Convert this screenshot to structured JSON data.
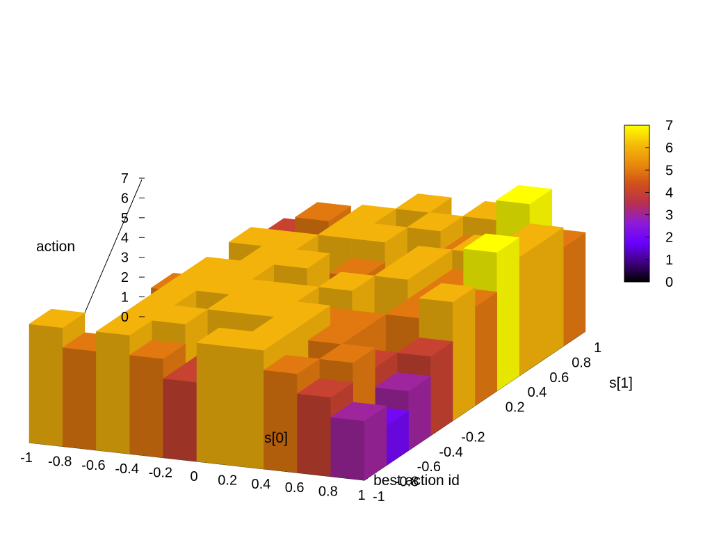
{
  "chart_data": {
    "type": "surface",
    "zlabel": "action",
    "xlabel": "s[0]",
    "ylabel": "s[1]",
    "caption": "best action id",
    "x_ticks": [
      "-1",
      "-0.8",
      "-0.6",
      "-0.4",
      "-0.2",
      "0",
      "0.2",
      "0.4",
      "0.6",
      "0.8",
      "1"
    ],
    "y_ticks": [
      "-1",
      "-0.8",
      "-0.6",
      "-0.4",
      "-0.2",
      "0.2",
      "0.4",
      "0.6",
      "0.8",
      "1"
    ],
    "z_ticks": [
      "0",
      "1",
      "2",
      "3",
      "4",
      "5",
      "6",
      "7"
    ],
    "colorbar_ticks": [
      "0",
      "1",
      "2",
      "3",
      "4",
      "5",
      "6",
      "7"
    ],
    "xlim": [
      -1,
      1
    ],
    "ylim": [
      -1,
      1
    ],
    "zlim": [
      0,
      7
    ],
    "colormap": [
      "#000000",
      "#400080",
      "#6a00ff",
      "#8c1cd8",
      "#b83050",
      "#d2501a",
      "#e88a0c",
      "#f6ba0a",
      "#ffff00"
    ],
    "x_grid": [
      -1,
      -0.8,
      -0.6,
      -0.4,
      -0.2,
      0,
      0.2,
      0.4,
      0.6,
      0.8,
      1
    ],
    "y_grid": [
      -1,
      -0.8,
      -0.6,
      -0.4,
      -0.2,
      0,
      0.2,
      0.4,
      0.6,
      0.8,
      1
    ],
    "z_values": [
      [
        6,
        5,
        6,
        5,
        4,
        6,
        6,
        5,
        4,
        3,
        2
      ],
      [
        3,
        3,
        6,
        6,
        4,
        5,
        6,
        3,
        5,
        2,
        1
      ],
      [
        3,
        4,
        6,
        5,
        6,
        6,
        6,
        5,
        4,
        3,
        2
      ],
      [
        2,
        3,
        6,
        6,
        6,
        6,
        5,
        5,
        3,
        4,
        3
      ],
      [
        1,
        5,
        6,
        6,
        5,
        4,
        6,
        3,
        5,
        6,
        4
      ],
      [
        1,
        2,
        4,
        6,
        6,
        4,
        4,
        6,
        5,
        5,
        3
      ],
      [
        2,
        3,
        6,
        6,
        4,
        5,
        4,
        6,
        5,
        7,
        4
      ],
      [
        1,
        2,
        5,
        5,
        6,
        6,
        4,
        5,
        6,
        6,
        5
      ],
      [
        2,
        2,
        3,
        4,
        6,
        5,
        6,
        5,
        4,
        6,
        3
      ],
      [
        1,
        4,
        5,
        3,
        5,
        6,
        5,
        6,
        7,
        5,
        4
      ],
      [
        0,
        3,
        4,
        3,
        4,
        5,
        6,
        4,
        4,
        3,
        4
      ]
    ]
  }
}
